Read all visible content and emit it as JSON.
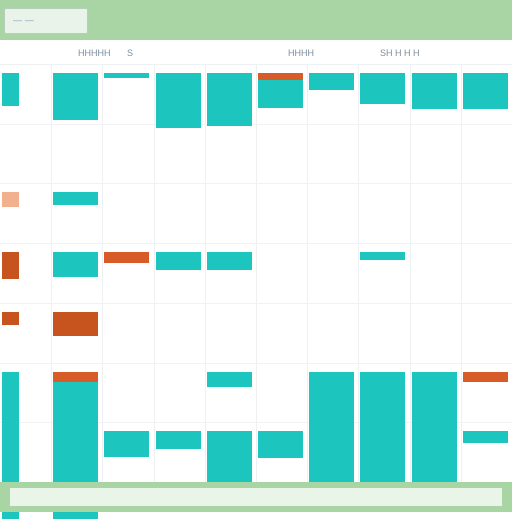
{
  "app": {
    "tab_text": "— —"
  },
  "header": {
    "labels": [
      "HHHHH",
      "S",
      "HHHH",
      "SH H H H"
    ]
  },
  "calendar": {
    "columns": 10,
    "rows": 7,
    "colors": {
      "teal": "#1cc5bd",
      "orange": "#d75c28",
      "orange_light": "#f3b08f",
      "orange_dark": "#c7531e"
    },
    "blocks": [
      {
        "col": 0,
        "row": 0,
        "w": 0.38,
        "h": 0.56,
        "color": "teal"
      },
      {
        "col": 1,
        "row": 0,
        "w": 0.92,
        "h": 0.78,
        "color": "teal"
      },
      {
        "col": 2,
        "row": 0,
        "w": 0.92,
        "h": 0.09,
        "color": "teal"
      },
      {
        "col": 3,
        "row": 0,
        "w": 0.92,
        "h": 0.92,
        "color": "teal"
      },
      {
        "col": 4,
        "row": 0,
        "w": 0.92,
        "h": 0.88,
        "color": "teal"
      },
      {
        "col": 5,
        "row": 0,
        "w": 0.92,
        "h": 0.58,
        "color": "teal"
      },
      {
        "col": 5,
        "row": 0,
        "w": 0.92,
        "h": 0.12,
        "color": "orange"
      },
      {
        "col": 6,
        "row": 0,
        "w": 0.92,
        "h": 0.28,
        "color": "teal"
      },
      {
        "col": 7,
        "row": 0,
        "w": 0.92,
        "h": 0.52,
        "color": "teal"
      },
      {
        "col": 8,
        "row": 0,
        "w": 0.92,
        "h": 0.6,
        "color": "teal"
      },
      {
        "col": 9,
        "row": 0,
        "w": 0.92,
        "h": 0.6,
        "color": "teal"
      },
      {
        "col": 0,
        "row": 2,
        "w": 0.38,
        "h": 0.25,
        "color": "orange_light"
      },
      {
        "col": 1,
        "row": 2,
        "w": 0.92,
        "h": 0.22,
        "color": "teal"
      },
      {
        "col": 0,
        "row": 3,
        "w": 0.38,
        "h": 0.34,
        "color": "teal"
      },
      {
        "col": 0,
        "row": 3,
        "w": 0.38,
        "h": 0.45,
        "color": "orange_dark"
      },
      {
        "col": 1,
        "row": 3,
        "w": 0.92,
        "h": 0.42,
        "color": "orange_dark"
      },
      {
        "col": 1,
        "row": 3,
        "w": 0.92,
        "h": 0.42,
        "color": "teal"
      },
      {
        "col": 2,
        "row": 3,
        "w": 0.92,
        "h": 0.18,
        "color": "orange"
      },
      {
        "col": 3,
        "row": 3,
        "w": 0.92,
        "h": 0.3,
        "color": "teal"
      },
      {
        "col": 4,
        "row": 3,
        "w": 0.92,
        "h": 0.3,
        "color": "teal"
      },
      {
        "col": 7,
        "row": 3,
        "w": 0.92,
        "h": 0.13,
        "color": "teal"
      },
      {
        "col": 0,
        "row": 4,
        "w": 0.38,
        "h": 0.22,
        "color": "orange_dark"
      },
      {
        "col": 1,
        "row": 4,
        "w": 0.92,
        "h": 0.4,
        "color": "orange_dark"
      },
      {
        "col": 0,
        "row": 5,
        "w": 0.38,
        "h": 2.46,
        "color": "teal"
      },
      {
        "col": 1,
        "row": 5,
        "w": 0.92,
        "h": 2.46,
        "color": "teal"
      },
      {
        "col": 1,
        "row": 5,
        "w": 0.92,
        "h": 0.16,
        "color": "orange"
      },
      {
        "col": 2,
        "row": 6,
        "w": 0.92,
        "h": 0.12,
        "color": "orange"
      },
      {
        "col": 2,
        "row": 6,
        "w": 0.92,
        "h": 0.18,
        "color": "orange"
      },
      {
        "col": 2,
        "row": 6,
        "w": 0.92,
        "h": 0.44,
        "color": "teal"
      },
      {
        "col": 3,
        "row": 6,
        "w": 0.92,
        "h": 0.3,
        "color": "teal"
      },
      {
        "col": 4,
        "row": 5,
        "w": 0.92,
        "h": 0.25,
        "color": "teal"
      },
      {
        "col": 4,
        "row": 6,
        "w": 0.92,
        "h": 0.86,
        "color": "teal"
      },
      {
        "col": 5,
        "row": 6,
        "w": 0.92,
        "h": 0.46,
        "color": "teal"
      },
      {
        "col": 6,
        "row": 5,
        "w": 0.92,
        "h": 2.35,
        "color": "teal"
      },
      {
        "col": 7,
        "row": 5,
        "w": 0.92,
        "h": 2.35,
        "color": "teal"
      },
      {
        "col": 8,
        "row": 5,
        "w": 0.92,
        "h": 2.35,
        "color": "teal"
      },
      {
        "col": 9,
        "row": 5,
        "w": 0.92,
        "h": 0.16,
        "color": "orange"
      },
      {
        "col": 9,
        "row": 6,
        "w": 0.92,
        "h": 0.2,
        "color": "teal"
      }
    ]
  }
}
